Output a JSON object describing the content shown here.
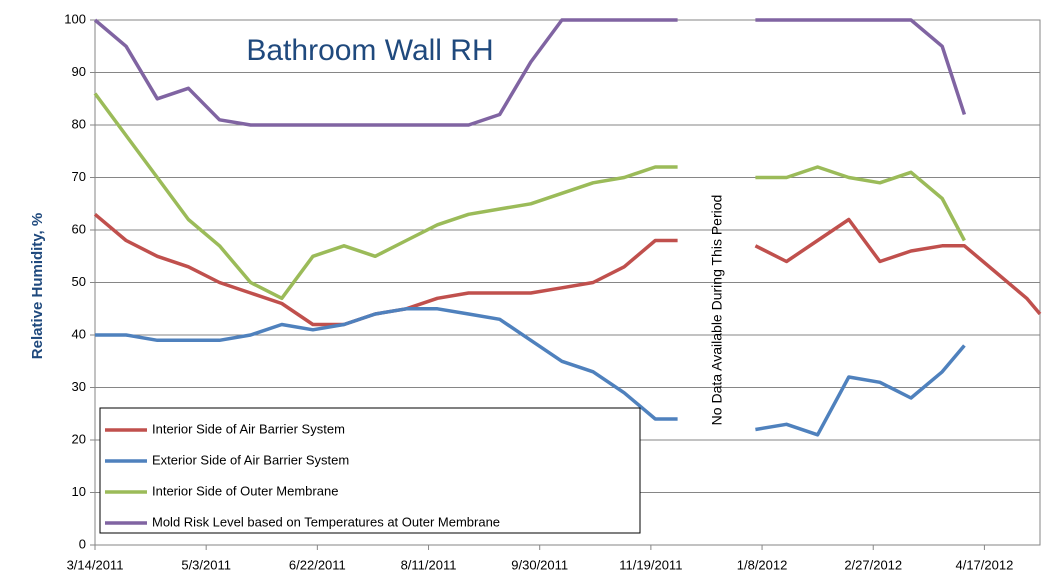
{
  "chart_data": {
    "type": "line",
    "title": "Bathroom Wall RH",
    "y_label": "Relative Humidity, %",
    "annotation": "No Data Available During This Period",
    "x": [
      "3/14/2011",
      "3/28/2011",
      "4/11/2011",
      "4/25/2011",
      "5/9/2011",
      "5/23/2011",
      "6/6/2011",
      "6/20/2011",
      "7/4/2011",
      "7/18/2011",
      "8/1/2011",
      "8/15/2011",
      "8/29/2011",
      "9/12/2011",
      "9/26/2011",
      "10/10/2011",
      "10/24/2011",
      "11/7/2011",
      "11/21/2011",
      "12/1/2011",
      "12/15/2011",
      "1/5/2012",
      "1/19/2012",
      "2/2/2012",
      "2/16/2012",
      "3/1/2012",
      "3/15/2012",
      "3/29/2012",
      "4/8/2012",
      "4/22/2012",
      "5/6/2012",
      "5/12/2012"
    ],
    "series": [
      {
        "name": "Interior Side of Air Barrier System",
        "color": "#c0504d",
        "values": [
          63,
          58,
          55,
          53,
          50,
          48,
          46,
          42,
          42,
          44,
          45,
          47,
          48,
          48,
          48,
          49,
          50,
          53,
          58,
          58,
          null,
          57,
          54,
          58,
          62,
          54,
          56,
          57,
          57,
          52,
          47,
          44
        ]
      },
      {
        "name": "Exterior Side of Air Barrier System",
        "color": "#4f81bd",
        "values": [
          40,
          40,
          39,
          39,
          39,
          40,
          42,
          41,
          42,
          44,
          45,
          45,
          44,
          43,
          39,
          35,
          33,
          29,
          24,
          24,
          null,
          22,
          23,
          21,
          32,
          31,
          28,
          33,
          38,
          null,
          null,
          null
        ]
      },
      {
        "name": "Interior Side of Outer Membrane",
        "color": "#9bbb59",
        "values": [
          86,
          78,
          70,
          62,
          57,
          50,
          47,
          55,
          57,
          55,
          58,
          61,
          63,
          64,
          65,
          67,
          69,
          70,
          72,
          72,
          null,
          70,
          70,
          72,
          70,
          69,
          71,
          66,
          58,
          null,
          null,
          null
        ]
      },
      {
        "name": "Mold Risk Level based on Temperatures at Outer Membrane",
        "color": "#8064a2",
        "values": [
          100,
          95,
          85,
          87,
          81,
          80,
          80,
          80,
          80,
          80,
          80,
          80,
          80,
          82,
          92,
          100,
          100,
          100,
          100,
          100,
          null,
          100,
          100,
          100,
          100,
          100,
          100,
          95,
          82,
          null,
          null,
          null
        ]
      }
    ],
    "xlim": [
      "3/14/2011",
      "5/12/2012"
    ],
    "xticks": [
      "3/14/2011",
      "5/3/2011",
      "6/22/2011",
      "8/11/2011",
      "9/30/2011",
      "11/19/2011",
      "1/8/2012",
      "2/27/2012",
      "4/17/2012"
    ],
    "ylim": [
      0,
      100
    ],
    "yticks": [
      0,
      10,
      20,
      30,
      40,
      50,
      60,
      70,
      80,
      90,
      100
    ],
    "grid": true,
    "legend": "lower left"
  }
}
